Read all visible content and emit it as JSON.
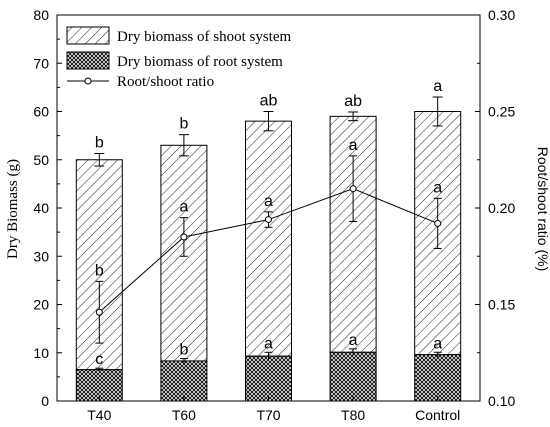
{
  "chart_data": {
    "type": "bar",
    "categories": [
      "T40",
      "T60",
      "T70",
      "T80",
      "Control"
    ],
    "xlabel": "",
    "ylabel": "Dry Biomass (g)",
    "y2label": "Root/shoot ratio (%)",
    "ylim": [
      0,
      80
    ],
    "y2lim": [
      0.1,
      0.3
    ],
    "yticks": [
      "0",
      "10",
      "20",
      "30",
      "40",
      "50",
      "60",
      "70",
      "80"
    ],
    "y2ticks": [
      "0.10",
      "0.15",
      "0.20",
      "0.25",
      "0.30"
    ],
    "legend_position": "top-left",
    "series": [
      {
        "name": "Dry biomass of shoot system",
        "kind": "stacked-bar",
        "pattern": "diagonal-hatch",
        "total_values": [
          50,
          53,
          58,
          59,
          60
        ],
        "errors": [
          1.3,
          2.2,
          2.0,
          0.9,
          3.0
        ],
        "letters": [
          "b",
          "b",
          "ab",
          "ab",
          "a"
        ]
      },
      {
        "name": "Dry biomass of root system",
        "kind": "stacked-bar",
        "pattern": "crosshatch",
        "values": [
          6.5,
          8.3,
          9.3,
          10.1,
          9.6
        ],
        "errors": [
          0.3,
          0.5,
          0.8,
          0.7,
          0.5
        ],
        "letters": [
          "c",
          "b",
          "a",
          "a",
          "a"
        ]
      },
      {
        "name": "Root/shoot ratio",
        "kind": "line",
        "axis": "right",
        "values": [
          0.146,
          0.185,
          0.194,
          0.21,
          0.192
        ],
        "errors": [
          0.016,
          0.01,
          0.004,
          0.017,
          0.013
        ],
        "letters": [
          "b",
          "a",
          "a",
          "a",
          "a"
        ]
      }
    ]
  }
}
